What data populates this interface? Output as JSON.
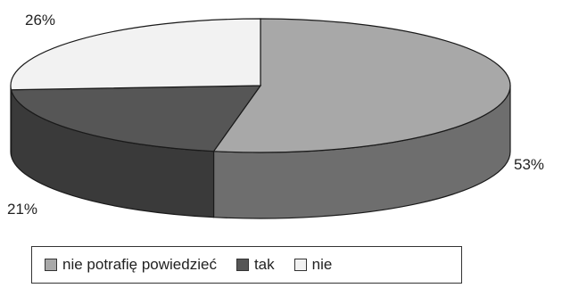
{
  "chart_data": {
    "type": "pie",
    "style": "3d",
    "title": "",
    "slices": [
      {
        "label": "nie potrafię powiedzieć",
        "value": 53,
        "display": "53%",
        "color": "#a8a8a8",
        "side_color": "#6e6e6e"
      },
      {
        "label": "tak",
        "value": 21,
        "display": "21%",
        "color": "#565656",
        "side_color": "#3a3a3a"
      },
      {
        "label": "nie",
        "value": 26,
        "display": "26%",
        "color": "#f2f2f2",
        "side_color": "#cfcfcf"
      }
    ],
    "legend_position": "bottom"
  }
}
